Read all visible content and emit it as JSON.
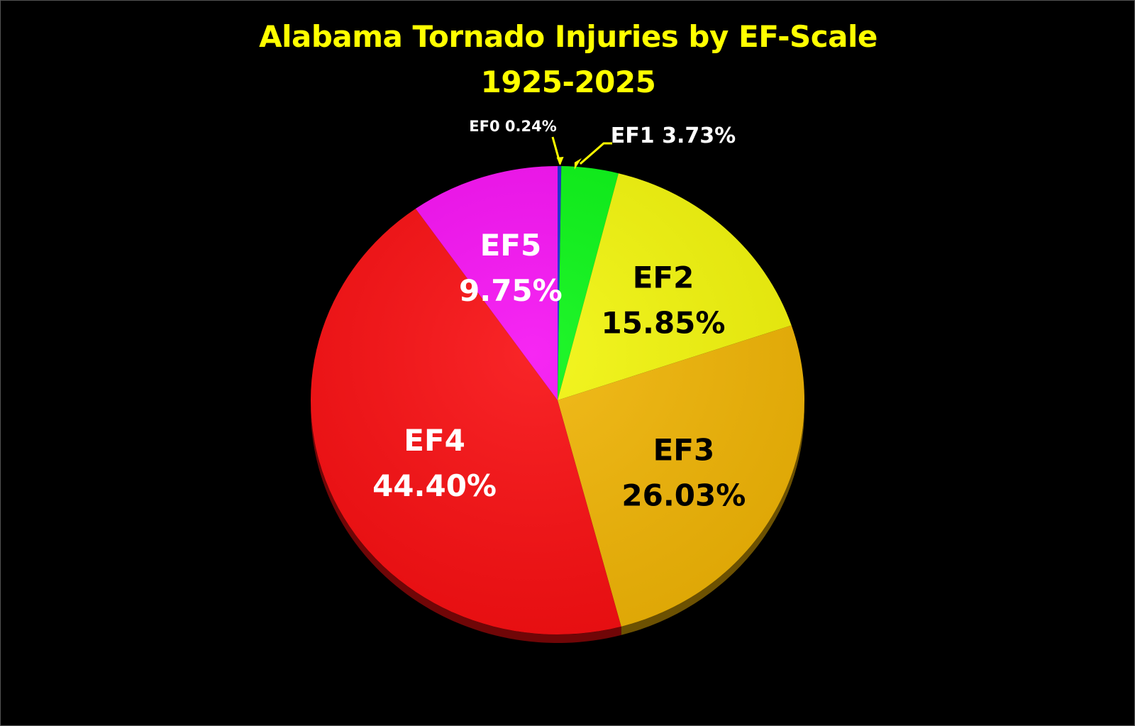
{
  "chart_data": {
    "type": "pie",
    "title": "Alabama Tornado Injuries by EF-Scale",
    "subtitle": "1925-2025",
    "slices": [
      {
        "label": "EF0",
        "value": 0.24,
        "text": "0.24%",
        "color": "#1a2bd6"
      },
      {
        "label": "EF1",
        "value": 3.73,
        "text": "3.73%",
        "color": "#08f514"
      },
      {
        "label": "EF2",
        "value": 15.85,
        "text": "15.85%",
        "color": "#f2f50a"
      },
      {
        "label": "EF3",
        "value": 26.03,
        "text": "26.03%",
        "color": "#f0b404"
      },
      {
        "label": "EF4",
        "value": 44.4,
        "text": "44.40%",
        "color": "#f80d10"
      },
      {
        "label": "EF5",
        "value": 9.75,
        "text": "9.75%",
        "color": "#f50ff2"
      }
    ],
    "label_colors": {
      "EF0": "#ffffff",
      "EF1": "#ffffff",
      "EF2": "#000000",
      "EF3": "#000000",
      "EF4": "#ffffff",
      "EF5": "#ffffff"
    },
    "leader_line_color": "#ffff00",
    "title_color": "#ffff00",
    "background": "#000000",
    "start": "top",
    "direction": "clockwise"
  }
}
